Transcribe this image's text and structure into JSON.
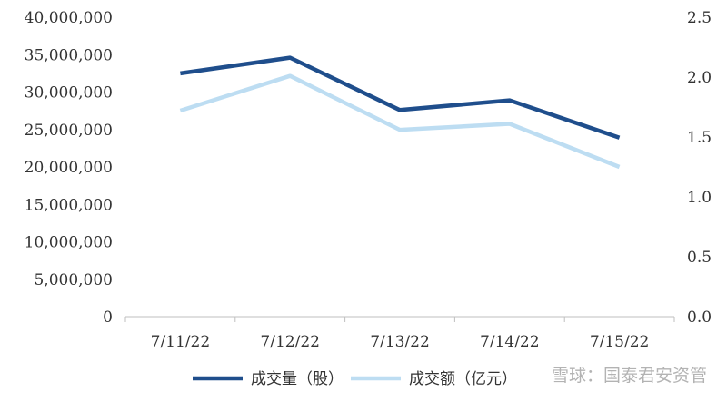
{
  "chart_data": {
    "type": "line",
    "categories": [
      "7/11/22",
      "7/12/22",
      "7/13/22",
      "7/14/22",
      "7/15/22"
    ],
    "y_left": {
      "ylim": [
        0,
        40000000
      ],
      "ticks": [
        "0",
        "5,000,000",
        "10,000,000",
        "15,000,000",
        "20,000,000",
        "25,000,000",
        "30,000,000",
        "35,000,000",
        "40,000,000"
      ],
      "tick_values": [
        0,
        5000000,
        10000000,
        15000000,
        20000000,
        25000000,
        30000000,
        35000000,
        40000000
      ]
    },
    "y_right": {
      "ylim": [
        0,
        2.5
      ],
      "ticks": [
        "0.0",
        "0.5",
        "1.0",
        "1.5",
        "2.0",
        "2.5"
      ],
      "tick_values": [
        0,
        0.5,
        1.0,
        1.5,
        2.0,
        2.5
      ]
    },
    "series": [
      {
        "name": "成交量（股）",
        "axis": "left",
        "color": "#1F4E8C",
        "values": [
          32500000,
          34600000,
          27600000,
          28900000,
          23900000
        ]
      },
      {
        "name": "成交额（亿元）",
        "axis": "right",
        "color": "#BDDDF2",
        "values": [
          1.72,
          2.01,
          1.56,
          1.61,
          1.25
        ]
      }
    ],
    "grid": false,
    "legend_position": "bottom"
  },
  "watermark": "雪球：国泰君安资管"
}
